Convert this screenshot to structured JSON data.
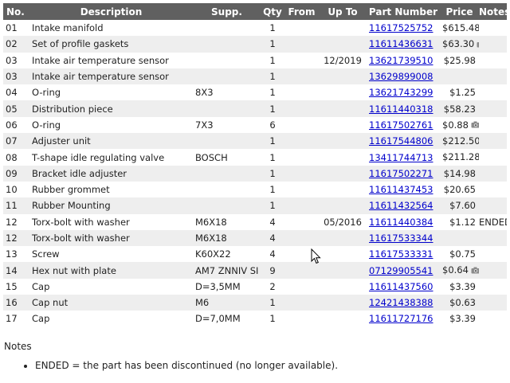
{
  "table": {
    "headers": {
      "no": "No.",
      "description": "Description",
      "supp": "Supp.",
      "qty": "Qty",
      "from": "From",
      "upto": "Up To",
      "partnumber": "Part Number",
      "price": "Price",
      "notes": "Notes"
    },
    "rows": [
      {
        "no": "01",
        "description": "Intake manifold",
        "supp": "",
        "qty": "1",
        "from": "",
        "upto": "",
        "part": "11617525752",
        "price": "$615.48",
        "notes": "",
        "camera": false
      },
      {
        "no": "02",
        "description": "Set of profile gaskets",
        "supp": "",
        "qty": "1",
        "from": "",
        "upto": "",
        "part": "11611436631",
        "price": "$63.30",
        "notes": "",
        "camera": true
      },
      {
        "no": "03",
        "description": "Intake air temperature sensor",
        "supp": "",
        "qty": "1",
        "from": "",
        "upto": "12/2019",
        "part": "13621739510",
        "price": "$25.98",
        "notes": "",
        "camera": false
      },
      {
        "no": "03",
        "description": "Intake air temperature sensor",
        "supp": "",
        "qty": "1",
        "from": "",
        "upto": "",
        "part": "13629899008",
        "price": "",
        "notes": "",
        "camera": false
      },
      {
        "no": "04",
        "description": "O-ring",
        "supp": "8X3",
        "qty": "1",
        "from": "",
        "upto": "",
        "part": "13621743299",
        "price": "$1.25",
        "notes": "",
        "camera": false
      },
      {
        "no": "05",
        "description": "Distribution piece",
        "supp": "",
        "qty": "1",
        "from": "",
        "upto": "",
        "part": "11611440318",
        "price": "$58.23",
        "notes": "",
        "camera": false
      },
      {
        "no": "06",
        "description": "O-ring",
        "supp": "7X3",
        "qty": "6",
        "from": "",
        "upto": "",
        "part": "11617502761",
        "price": "$0.88",
        "notes": "",
        "camera": true
      },
      {
        "no": "07",
        "description": "Adjuster unit",
        "supp": "",
        "qty": "1",
        "from": "",
        "upto": "",
        "part": "11617544806",
        "price": "$212.50",
        "notes": "",
        "camera": true
      },
      {
        "no": "08",
        "description": "T-shape idle regulating valve",
        "supp": "BOSCH",
        "qty": "1",
        "from": "",
        "upto": "",
        "part": "13411744713",
        "price": "$211.28",
        "notes": "",
        "camera": true
      },
      {
        "no": "09",
        "description": "Bracket idle adjuster",
        "supp": "",
        "qty": "1",
        "from": "",
        "upto": "",
        "part": "11617502271",
        "price": "$14.98",
        "notes": "",
        "camera": false
      },
      {
        "no": "10",
        "description": "Rubber grommet",
        "supp": "",
        "qty": "1",
        "from": "",
        "upto": "",
        "part": "11611437453",
        "price": "$20.65",
        "notes": "",
        "camera": false
      },
      {
        "no": "11",
        "description": "Rubber Mounting",
        "supp": "",
        "qty": "1",
        "from": "",
        "upto": "",
        "part": "11611432564",
        "price": "$7.60",
        "notes": "",
        "camera": false
      },
      {
        "no": "12",
        "description": "Torx-bolt with washer",
        "supp": "M6X18",
        "qty": "4",
        "from": "",
        "upto": "05/2016",
        "part": "11611440384",
        "price": "$1.12",
        "notes": "ENDED",
        "camera": false
      },
      {
        "no": "12",
        "description": "Torx-bolt with washer",
        "supp": "M6X18",
        "qty": "4",
        "from": "",
        "upto": "",
        "part": "11617533344",
        "price": "",
        "notes": "",
        "camera": false
      },
      {
        "no": "13",
        "description": "Screw",
        "supp": "K60X22",
        "qty": "4",
        "from": "",
        "upto": "",
        "part": "11617533331",
        "price": "$0.75",
        "notes": "",
        "camera": false
      },
      {
        "no": "14",
        "description": "Hex nut with plate",
        "supp": "AM7 ZNNIV SI",
        "qty": "9",
        "from": "",
        "upto": "",
        "part": "07129905541",
        "price": "$0.64",
        "notes": "",
        "camera": true
      },
      {
        "no": "15",
        "description": "Cap",
        "supp": "D=3,5MM",
        "qty": "2",
        "from": "",
        "upto": "",
        "part": "11611437560",
        "price": "$3.39",
        "notes": "",
        "camera": false
      },
      {
        "no": "16",
        "description": "Cap nut",
        "supp": "M6",
        "qty": "1",
        "from": "",
        "upto": "",
        "part": "12421438388",
        "price": "$0.63",
        "notes": "",
        "camera": false
      },
      {
        "no": "17",
        "description": "Cap",
        "supp": "D=7,0MM",
        "qty": "1",
        "from": "",
        "upto": "",
        "part": "11611727176",
        "price": "$3.39",
        "notes": "",
        "camera": false
      }
    ]
  },
  "notes_section": {
    "title": "Notes",
    "items": [
      "ENDED = the part has been discontinued (no longer available)."
    ]
  },
  "icons": {
    "camera": "camera-icon",
    "cursor": "mouse-cursor-icon"
  },
  "colors": {
    "header_bg": "#606060",
    "stripe": "#eeeeee",
    "link": "#0000cc"
  }
}
